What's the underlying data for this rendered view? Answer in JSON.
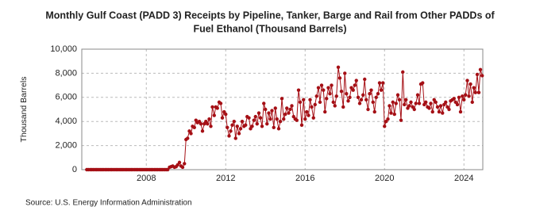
{
  "chart_data": {
    "type": "line",
    "title": [
      "Monthly Gulf Coast (PADD 3) Receipts by Pipeline, Tanker, Barge and Rail from Other PADDs of",
      "Fuel Ethanol (Thousand Barrels)"
    ],
    "y_label": "Thousand Barrels",
    "source": "Source: U.S. Energy Information Administration",
    "xlim": [
      2004.75,
      2024.95
    ],
    "xticks": [
      2008,
      2012,
      2016,
      2020,
      2024
    ],
    "ylim": [
      0,
      10000
    ],
    "yticks": [
      {
        "value": 0,
        "label": "0"
      },
      {
        "value": 2000,
        "label": "2,000"
      },
      {
        "value": 4000,
        "label": "4,000"
      },
      {
        "value": 6000,
        "label": "6,000"
      },
      {
        "value": 8000,
        "label": "8,000"
      },
      {
        "value": 10000,
        "label": "10,000"
      }
    ],
    "grid": true,
    "x": [
      2005,
      2005.08,
      2005.17,
      2005.25,
      2005.33,
      2005.42,
      2005.5,
      2005.58,
      2005.67,
      2005.75,
      2005.83,
      2005.92,
      2006,
      2006.08,
      2006.17,
      2006.25,
      2006.33,
      2006.42,
      2006.5,
      2006.58,
      2006.67,
      2006.75,
      2006.83,
      2006.92,
      2007,
      2007.08,
      2007.17,
      2007.25,
      2007.33,
      2007.42,
      2007.5,
      2007.58,
      2007.67,
      2007.75,
      2007.83,
      2007.92,
      2008,
      2008.08,
      2008.17,
      2008.25,
      2008.33,
      2008.42,
      2008.5,
      2008.58,
      2008.67,
      2008.75,
      2008.83,
      2008.92,
      2009,
      2009.08,
      2009.17,
      2009.25,
      2009.33,
      2009.42,
      2009.5,
      2009.58,
      2009.67,
      2009.75,
      2009.83,
      2009.92,
      2010,
      2010.08,
      2010.17,
      2010.25,
      2010.33,
      2010.42,
      2010.5,
      2010.58,
      2010.67,
      2010.75,
      2010.83,
      2010.92,
      2011,
      2011.08,
      2011.17,
      2011.25,
      2011.33,
      2011.42,
      2011.5,
      2011.58,
      2011.67,
      2011.75,
      2011.83,
      2011.92,
      2012,
      2012.08,
      2012.17,
      2012.25,
      2012.33,
      2012.42,
      2012.5,
      2012.58,
      2012.67,
      2012.75,
      2012.83,
      2012.92,
      2013,
      2013.08,
      2013.17,
      2013.25,
      2013.33,
      2013.42,
      2013.5,
      2013.58,
      2013.67,
      2013.75,
      2013.83,
      2013.92,
      2014,
      2014.08,
      2014.17,
      2014.25,
      2014.33,
      2014.42,
      2014.5,
      2014.58,
      2014.67,
      2014.75,
      2014.83,
      2014.92,
      2015,
      2015.08,
      2015.17,
      2015.25,
      2015.33,
      2015.42,
      2015.5,
      2015.58,
      2015.67,
      2015.75,
      2015.83,
      2015.92,
      2016,
      2016.08,
      2016.17,
      2016.25,
      2016.33,
      2016.42,
      2016.5,
      2016.58,
      2016.67,
      2016.75,
      2016.83,
      2016.92,
      2017,
      2017.08,
      2017.17,
      2017.25,
      2017.33,
      2017.42,
      2017.5,
      2017.58,
      2017.67,
      2017.75,
      2017.83,
      2017.92,
      2018,
      2018.08,
      2018.17,
      2018.25,
      2018.33,
      2018.42,
      2018.5,
      2018.58,
      2018.67,
      2018.75,
      2018.83,
      2018.92,
      2019,
      2019.08,
      2019.17,
      2019.25,
      2019.33,
      2019.42,
      2019.5,
      2019.58,
      2019.67,
      2019.75,
      2019.83,
      2019.92,
      2020,
      2020.08,
      2020.17,
      2020.25,
      2020.33,
      2020.42,
      2020.5,
      2020.58,
      2020.67,
      2020.75,
      2020.83,
      2020.92,
      2021,
      2021.08,
      2021.17,
      2021.25,
      2021.33,
      2021.42,
      2021.5,
      2021.58,
      2021.67,
      2021.75,
      2021.83,
      2021.92,
      2022,
      2022.08,
      2022.17,
      2022.25,
      2022.33,
      2022.42,
      2022.5,
      2022.58,
      2022.67,
      2022.75,
      2022.83,
      2022.92,
      2023,
      2023.08,
      2023.17,
      2023.25,
      2023.33,
      2023.42,
      2023.5,
      2023.58,
      2023.67,
      2023.75,
      2023.83,
      2023.92,
      2024,
      2024.08,
      2024.17,
      2024.25,
      2024.33,
      2024.42,
      2024.5,
      2024.58,
      2024.67,
      2024.75,
      2024.83,
      2024.92
    ],
    "series": [
      {
        "name": "Fuel Ethanol",
        "color": "#a50f15",
        "values": [
          0,
          0,
          0,
          0,
          0,
          0,
          0,
          0,
          0,
          0,
          0,
          0,
          0,
          0,
          0,
          0,
          0,
          0,
          0,
          0,
          0,
          0,
          0,
          0,
          0,
          0,
          0,
          0,
          0,
          0,
          0,
          0,
          0,
          0,
          0,
          0,
          0,
          0,
          0,
          0,
          0,
          0,
          0,
          0,
          0,
          0,
          0,
          0,
          0,
          0,
          200,
          250,
          300,
          200,
          250,
          400,
          600,
          300,
          200,
          500,
          2500,
          2600,
          3200,
          3000,
          3600,
          3500,
          4100,
          3900,
          4000,
          3800,
          3200,
          3800,
          4000,
          3800,
          4200,
          3600,
          5200,
          4500,
          5200,
          5100,
          5600,
          5500,
          4300,
          4800,
          4600,
          3500,
          2800,
          3200,
          3700,
          4000,
          2600,
          3600,
          3000,
          3400,
          4000,
          3600,
          3700,
          4400,
          4300,
          3400,
          3600,
          4100,
          4400,
          3800,
          4700,
          4300,
          3600,
          5500,
          5000,
          3800,
          4700,
          4200,
          4900,
          3500,
          5100,
          4200,
          3400,
          4000,
          5900,
          4200,
          4600,
          5100,
          4700,
          5000,
          5300,
          4400,
          4200,
          4100,
          6600,
          5600,
          3700,
          5800,
          4200,
          4800,
          4500,
          5800,
          5200,
          4300,
          5400,
          6100,
          6800,
          5600,
          7000,
          6600,
          4800,
          5900,
          6800,
          6300,
          7000,
          5600,
          5300,
          6100,
          8500,
          7600,
          6500,
          5200,
          8000,
          6300,
          5700,
          6000,
          6800,
          6600,
          7000,
          7400,
          6000,
          5500,
          5800,
          6200,
          7500,
          5800,
          5000,
          6300,
          6600,
          5600,
          4800,
          6000,
          6300,
          7200,
          6600,
          7200,
          3600,
          4000,
          4200,
          5300,
          4700,
          5600,
          4600,
          5500,
          6200,
          5800,
          4100,
          8100,
          5400,
          5800,
          5100,
          5300,
          5600,
          5200,
          5000,
          5500,
          6200,
          5500,
          7100,
          7200,
          5400,
          5600,
          5200,
          5100,
          5500,
          4800,
          5800,
          5600,
          5200,
          4800,
          5300,
          4700,
          5400,
          5600,
          5200,
          5000,
          5700,
          5800,
          5900,
          5600,
          5400,
          6000,
          4800,
          6100,
          5800,
          6200,
          7400,
          6100,
          7100,
          5600,
          6800,
          6400,
          7900,
          6400,
          8300,
          7800
        ]
      }
    ]
  }
}
